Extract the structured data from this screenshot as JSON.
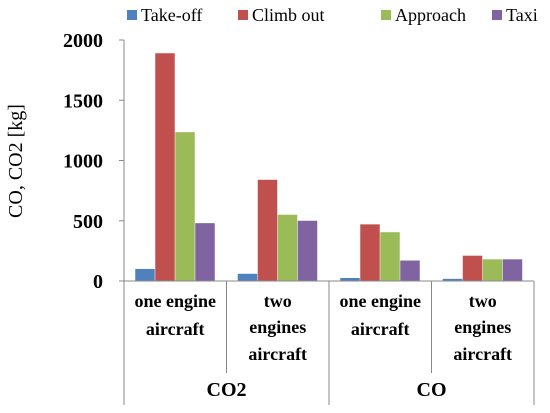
{
  "chart_data": {
    "type": "bar",
    "title": "",
    "xlabel": "",
    "ylabel": "CO, CO2 [kg]",
    "ylim": [
      0,
      2000
    ],
    "yticks": [
      0,
      500,
      1000,
      1500,
      2000
    ],
    "grid": false,
    "legend_position": "top",
    "categories": [
      {
        "lines": [
          "one engine",
          "aircraft"
        ],
        "group": "CO2"
      },
      {
        "lines": [
          "two",
          "engines",
          "aircraft"
        ],
        "group": "CO2"
      },
      {
        "lines": [
          "one engine",
          "aircraft"
        ],
        "group": "CO"
      },
      {
        "lines": [
          "two",
          "engines",
          "aircraft"
        ],
        "group": "CO"
      }
    ],
    "groups": [
      "CO2",
      "CO"
    ],
    "series": [
      {
        "name": "Take-off",
        "color": "#4f81bd",
        "values": [
          100,
          60,
          25,
          18
        ]
      },
      {
        "name": "Climb out",
        "color": "#c0504d",
        "values": [
          1890,
          840,
          470,
          210
        ]
      },
      {
        "name": "Approach",
        "color": "#9bbb59",
        "values": [
          1235,
          550,
          405,
          180
        ]
      },
      {
        "name": "Taxi",
        "color": "#8064a2",
        "values": [
          480,
          500,
          170,
          180
        ]
      }
    ]
  }
}
